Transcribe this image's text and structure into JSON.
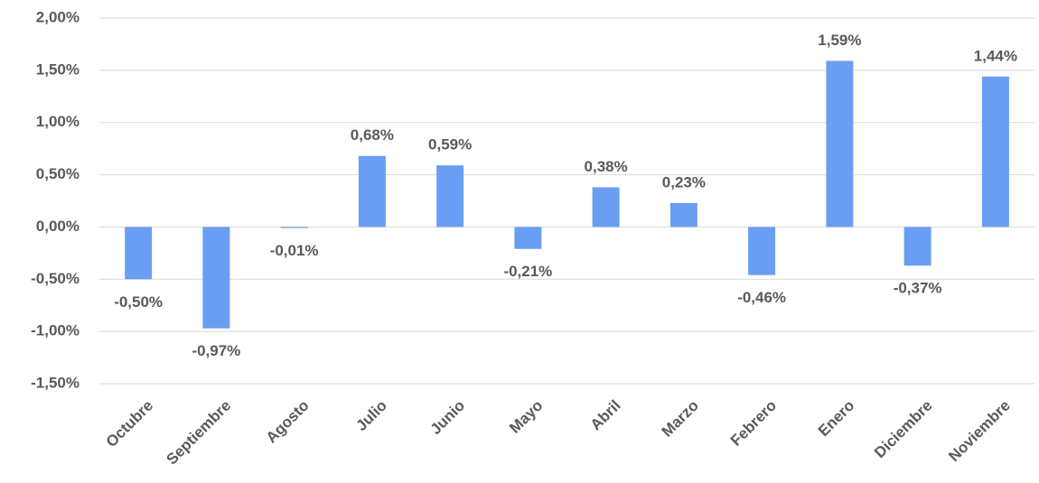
{
  "chart_data": {
    "type": "bar",
    "categories": [
      "Octubre",
      "Septiembre",
      "Agosto",
      "Julio",
      "Junio",
      "Mayo",
      "Abril",
      "Marzo",
      "Febrero",
      "Enero",
      "Diciembre",
      "Noviembre"
    ],
    "values": [
      -0.5,
      -0.97,
      -0.01,
      0.68,
      0.59,
      -0.21,
      0.38,
      0.23,
      -0.46,
      1.59,
      -0.37,
      1.44
    ],
    "value_labels": [
      "-0,50%",
      "-0,97%",
      "-0,01%",
      "0,68%",
      "0,59%",
      "-0,21%",
      "0,38%",
      "0,23%",
      "-0,46%",
      "1,59%",
      "-0,37%",
      "1,44%"
    ],
    "color": "#6a9ef2",
    "ylim": [
      -1.5,
      2.0
    ],
    "yticks": [
      {
        "value": -1.5,
        "label": "-1,50%"
      },
      {
        "value": -1.0,
        "label": "-1,00%"
      },
      {
        "value": -0.5,
        "label": "-0,50%"
      },
      {
        "value": 0,
        "label": "0,00%"
      },
      {
        "value": 0.5,
        "label": "0,50%"
      },
      {
        "value": 1.0,
        "label": "1,00%"
      },
      {
        "value": 1.5,
        "label": "1,50%"
      },
      {
        "value": 2.0,
        "label": "2,00%"
      }
    ],
    "grid": true
  }
}
